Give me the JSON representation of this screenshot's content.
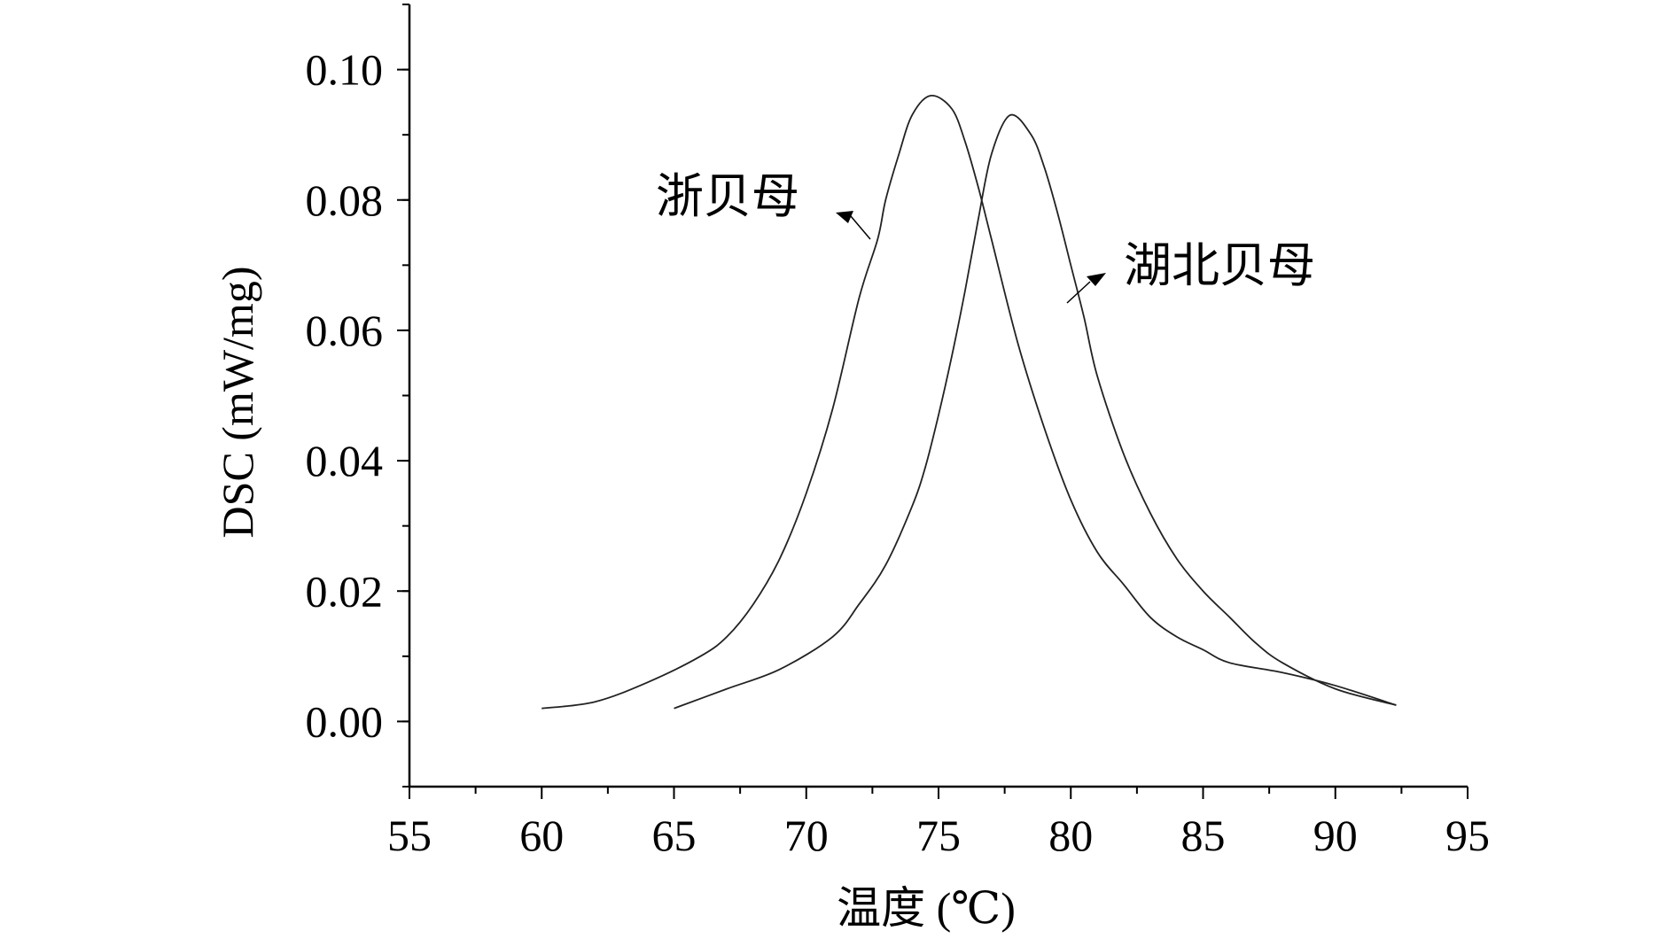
{
  "chart_data": {
    "type": "line",
    "xlabel": "温度 (℃)",
    "ylabel": "DSC (mW/mg)",
    "xlim": [
      55,
      95
    ],
    "ylim": [
      -0.01,
      0.11
    ],
    "xticks": [
      55,
      60,
      65,
      70,
      75,
      80,
      85,
      90,
      95
    ],
    "xtick_labels": [
      "55",
      "60",
      "65",
      "70",
      "75",
      "80",
      "85",
      "90",
      "95"
    ],
    "yticks": [
      0.0,
      0.02,
      0.04,
      0.06,
      0.08,
      0.1
    ],
    "ytick_labels": [
      "0.00",
      "0.02",
      "0.04",
      "0.06",
      "0.08",
      "0.10"
    ],
    "grid": false,
    "series": [
      {
        "name": "浙贝母",
        "x": [
          60,
          62,
          64,
          66,
          67,
          68,
          69,
          70,
          71,
          72,
          72.7,
          73,
          73.5,
          74,
          74.7,
          75.5,
          76,
          76.5,
          77,
          78,
          79,
          80,
          81,
          82,
          83,
          84,
          85,
          86,
          88,
          90,
          92.3
        ],
        "y": [
          0.002,
          0.003,
          0.006,
          0.01,
          0.013,
          0.018,
          0.025,
          0.035,
          0.048,
          0.065,
          0.074,
          0.08,
          0.087,
          0.093,
          0.096,
          0.094,
          0.089,
          0.082,
          0.074,
          0.058,
          0.045,
          0.034,
          0.026,
          0.021,
          0.016,
          0.013,
          0.011,
          0.009,
          0.0075,
          0.0055,
          0.0025
        ]
      },
      {
        "name": "湖北贝母",
        "x": [
          65,
          67,
          69,
          71,
          72,
          73,
          74,
          74.5,
          75,
          75.5,
          76,
          76.5,
          77,
          77.7,
          78.5,
          79,
          79.5,
          80,
          80.5,
          81,
          82,
          83,
          84,
          85,
          86,
          87,
          88,
          90,
          92.3
        ],
        "y": [
          0.002,
          0.005,
          0.008,
          0.013,
          0.018,
          0.024,
          0.033,
          0.039,
          0.047,
          0.056,
          0.066,
          0.077,
          0.087,
          0.093,
          0.09,
          0.085,
          0.078,
          0.07,
          0.062,
          0.053,
          0.041,
          0.032,
          0.025,
          0.02,
          0.016,
          0.012,
          0.009,
          0.005,
          0.0025
        ]
      }
    ],
    "annotations": [
      "浙贝母",
      "湖北贝母"
    ]
  }
}
